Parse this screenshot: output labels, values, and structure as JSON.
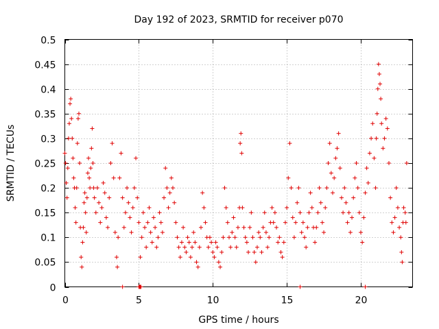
{
  "chart_data": {
    "type": "scatter",
    "title": "Day 192 of 2023, SRMTID for receiver p070",
    "xlabel": "GPS time / hours",
    "ylabel": "SRMTID / TECUs",
    "xlim": [
      0,
      23.5
    ],
    "ylim": [
      0,
      0.5
    ],
    "xticks": [
      0,
      5,
      10,
      15,
      20
    ],
    "xtick_labels": [
      "0",
      "5",
      "10",
      "15",
      "20"
    ],
    "yticks": [
      0,
      0.05,
      0.1,
      0.15,
      0.2,
      0.25,
      0.3,
      0.35,
      0.4,
      0.45,
      0.5
    ],
    "ytick_labels": [
      "0",
      "0.05",
      "0.1",
      "0.15",
      "0.2",
      "0.25",
      "0.3",
      "0.35",
      "0.4",
      "0.45",
      "0.5"
    ],
    "grid": true,
    "marker": "+",
    "color": "#e00000",
    "series": [
      {
        "name": "SRMTID",
        "points": [
          [
            0.0,
            0.27
          ],
          [
            0.05,
            0.25
          ],
          [
            0.1,
            0.21
          ],
          [
            0.15,
            0.18
          ],
          [
            0.2,
            0.24
          ],
          [
            0.25,
            0.3
          ],
          [
            0.3,
            0.33
          ],
          [
            0.35,
            0.37
          ],
          [
            0.4,
            0.38
          ],
          [
            0.45,
            0.34
          ],
          [
            0.5,
            0.3
          ],
          [
            0.55,
            0.26
          ],
          [
            0.6,
            0.22
          ],
          [
            0.65,
            0.2
          ],
          [
            0.7,
            0.16
          ],
          [
            0.75,
            0.13
          ],
          [
            0.8,
            0.2
          ],
          [
            0.85,
            0.29
          ],
          [
            0.9,
            0.34
          ],
          [
            0.95,
            0.35
          ],
          [
            1.0,
            0.25
          ],
          [
            1.05,
            0.12
          ],
          [
            1.1,
            0.06
          ],
          [
            1.15,
            0.04
          ],
          [
            1.2,
            0.09
          ],
          [
            1.25,
            0.12
          ],
          [
            1.3,
            0.17
          ],
          [
            1.35,
            0.19
          ],
          [
            1.4,
            0.15
          ],
          [
            1.45,
            0.11
          ],
          [
            1.5,
            0.18
          ],
          [
            1.55,
            0.23
          ],
          [
            1.6,
            0.26
          ],
          [
            1.65,
            0.22
          ],
          [
            1.7,
            0.2
          ],
          [
            1.75,
            0.24
          ],
          [
            1.8,
            0.28
          ],
          [
            1.85,
            0.32
          ],
          [
            1.9,
            0.25
          ],
          [
            1.95,
            0.2
          ],
          [
            2.0,
            0.18
          ],
          [
            2.1,
            0.15
          ],
          [
            2.2,
            0.2
          ],
          [
            2.3,
            0.17
          ],
          [
            2.4,
            0.13
          ],
          [
            2.5,
            0.16
          ],
          [
            2.6,
            0.21
          ],
          [
            2.7,
            0.19
          ],
          [
            2.8,
            0.14
          ],
          [
            2.9,
            0.12
          ],
          [
            3.0,
            0.18
          ],
          [
            3.1,
            0.25
          ],
          [
            3.2,
            0.29
          ],
          [
            3.3,
            0.22
          ],
          [
            3.4,
            0.11
          ],
          [
            3.5,
            0.06
          ],
          [
            3.55,
            0.04
          ],
          [
            3.6,
            0.1
          ],
          [
            3.7,
            0.22
          ],
          [
            3.8,
            0.27
          ],
          [
            3.9,
            0.18
          ],
          [
            4.0,
            0.12
          ],
          [
            4.1,
            0.15
          ],
          [
            4.2,
            0.2
          ],
          [
            4.3,
            0.17
          ],
          [
            4.4,
            0.14
          ],
          [
            4.5,
            0.11
          ],
          [
            4.6,
            0.16
          ],
          [
            4.7,
            0.2
          ],
          [
            4.8,
            0.26
          ],
          [
            4.9,
            0.18
          ],
          [
            5.0,
            0.13
          ],
          [
            5.1,
            0.06
          ],
          [
            5.2,
            0.1
          ],
          [
            5.3,
            0.15
          ],
          [
            5.4,
            0.12
          ],
          [
            5.5,
            0.08
          ],
          [
            5.6,
            0.13
          ],
          [
            5.7,
            0.16
          ],
          [
            5.8,
            0.11
          ],
          [
            5.9,
            0.09
          ],
          [
            6.0,
            0.14
          ],
          [
            6.1,
            0.12
          ],
          [
            6.2,
            0.08
          ],
          [
            6.3,
            0.1
          ],
          [
            6.4,
            0.15
          ],
          [
            6.5,
            0.13
          ],
          [
            6.6,
            0.11
          ],
          [
            6.7,
            0.18
          ],
          [
            6.8,
            0.24
          ],
          [
            6.9,
            0.2
          ],
          [
            7.0,
            0.16
          ],
          [
            7.1,
            0.19
          ],
          [
            7.2,
            0.22
          ],
          [
            7.3,
            0.2
          ],
          [
            7.4,
            0.17
          ],
          [
            7.5,
            0.13
          ],
          [
            7.6,
            0.1
          ],
          [
            7.7,
            0.08
          ],
          [
            7.8,
            0.06
          ],
          [
            7.9,
            0.09
          ],
          [
            8.0,
            0.12
          ],
          [
            8.1,
            0.08
          ],
          [
            8.2,
            0.07
          ],
          [
            8.3,
            0.1
          ],
          [
            8.4,
            0.09
          ],
          [
            8.5,
            0.06
          ],
          [
            8.6,
            0.08
          ],
          [
            8.7,
            0.11
          ],
          [
            8.8,
            0.09
          ],
          [
            8.9,
            0.05
          ],
          [
            9.0,
            0.04
          ],
          [
            9.1,
            0.08
          ],
          [
            9.2,
            0.12
          ],
          [
            9.3,
            0.19
          ],
          [
            9.4,
            0.16
          ],
          [
            9.5,
            0.13
          ],
          [
            9.6,
            0.1
          ],
          [
            9.7,
            0.08
          ],
          [
            9.8,
            0.1
          ],
          [
            9.9,
            0.09
          ],
          [
            10.0,
            0.07
          ],
          [
            10.1,
            0.06
          ],
          [
            10.2,
            0.09
          ],
          [
            10.3,
            0.08
          ],
          [
            10.4,
            0.05
          ],
          [
            10.5,
            0.04
          ],
          [
            10.6,
            0.07
          ],
          [
            10.7,
            0.1
          ],
          [
            10.8,
            0.2
          ],
          [
            10.9,
            0.16
          ],
          [
            11.0,
            0.13
          ],
          [
            11.1,
            0.1
          ],
          [
            11.2,
            0.08
          ],
          [
            11.3,
            0.11
          ],
          [
            11.4,
            0.14
          ],
          [
            11.5,
            0.1
          ],
          [
            11.6,
            0.08
          ],
          [
            11.7,
            0.12
          ],
          [
            11.8,
            0.16
          ],
          [
            11.85,
            0.29
          ],
          [
            11.9,
            0.31
          ],
          [
            11.95,
            0.27
          ],
          [
            12.0,
            0.16
          ],
          [
            12.1,
            0.12
          ],
          [
            12.2,
            0.1
          ],
          [
            12.3,
            0.09
          ],
          [
            12.4,
            0.07
          ],
          [
            12.5,
            0.12
          ],
          [
            12.6,
            0.15
          ],
          [
            12.7,
            0.1
          ],
          [
            12.8,
            0.07
          ],
          [
            12.9,
            0.05
          ],
          [
            13.0,
            0.08
          ],
          [
            13.1,
            0.11
          ],
          [
            13.2,
            0.1
          ],
          [
            13.3,
            0.07
          ],
          [
            13.4,
            0.12
          ],
          [
            13.5,
            0.15
          ],
          [
            13.6,
            0.11
          ],
          [
            13.7,
            0.08
          ],
          [
            13.8,
            0.1
          ],
          [
            13.9,
            0.13
          ],
          [
            14.0,
            0.16
          ],
          [
            14.1,
            0.13
          ],
          [
            14.2,
            0.15
          ],
          [
            14.3,
            0.12
          ],
          [
            14.4,
            0.09
          ],
          [
            14.5,
            0.1
          ],
          [
            14.6,
            0.07
          ],
          [
            14.7,
            0.06
          ],
          [
            14.8,
            0.09
          ],
          [
            14.9,
            0.13
          ],
          [
            15.0,
            0.16
          ],
          [
            15.1,
            0.22
          ],
          [
            15.2,
            0.29
          ],
          [
            15.3,
            0.2
          ],
          [
            15.4,
            0.14
          ],
          [
            15.5,
            0.1
          ],
          [
            15.6,
            0.13
          ],
          [
            15.7,
            0.17
          ],
          [
            15.8,
            0.2
          ],
          [
            15.9,
            0.15
          ],
          [
            16.0,
            0.11
          ],
          [
            16.1,
            0.13
          ],
          [
            16.2,
            0.1
          ],
          [
            16.3,
            0.08
          ],
          [
            16.4,
            0.12
          ],
          [
            16.5,
            0.15
          ],
          [
            16.6,
            0.19
          ],
          [
            16.7,
            0.16
          ],
          [
            16.8,
            0.12
          ],
          [
            16.9,
            0.09
          ],
          [
            17.0,
            0.12
          ],
          [
            17.1,
            0.15
          ],
          [
            17.2,
            0.2
          ],
          [
            17.3,
            0.17
          ],
          [
            17.4,
            0.13
          ],
          [
            17.5,
            0.11
          ],
          [
            17.6,
            0.16
          ],
          [
            17.7,
            0.2
          ],
          [
            17.8,
            0.25
          ],
          [
            17.9,
            0.29
          ],
          [
            18.0,
            0.23
          ],
          [
            18.1,
            0.19
          ],
          [
            18.2,
            0.22
          ],
          [
            18.3,
            0.26
          ],
          [
            18.4,
            0.28
          ],
          [
            18.5,
            0.31
          ],
          [
            18.6,
            0.24
          ],
          [
            18.7,
            0.18
          ],
          [
            18.8,
            0.15
          ],
          [
            18.9,
            0.2
          ],
          [
            19.0,
            0.17
          ],
          [
            19.1,
            0.13
          ],
          [
            19.2,
            0.15
          ],
          [
            19.3,
            0.11
          ],
          [
            19.4,
            0.14
          ],
          [
            19.5,
            0.18
          ],
          [
            19.6,
            0.22
          ],
          [
            19.7,
            0.25
          ],
          [
            19.8,
            0.2
          ],
          [
            19.9,
            0.15
          ],
          [
            20.0,
            0.11
          ],
          [
            20.1,
            0.09
          ],
          [
            20.2,
            0.14
          ],
          [
            20.3,
            0.19
          ],
          [
            20.4,
            0.24
          ],
          [
            20.5,
            0.21
          ],
          [
            20.6,
            0.27
          ],
          [
            20.7,
            0.3
          ],
          [
            20.8,
            0.33
          ],
          [
            20.9,
            0.26
          ],
          [
            21.0,
            0.2
          ],
          [
            21.05,
            0.3
          ],
          [
            21.1,
            0.35
          ],
          [
            21.15,
            0.4
          ],
          [
            21.2,
            0.45
          ],
          [
            21.25,
            0.43
          ],
          [
            21.3,
            0.41
          ],
          [
            21.35,
            0.38
          ],
          [
            21.4,
            0.33
          ],
          [
            21.5,
            0.28
          ],
          [
            21.6,
            0.3
          ],
          [
            21.7,
            0.34
          ],
          [
            21.8,
            0.32
          ],
          [
            21.9,
            0.25
          ],
          [
            22.0,
            0.18
          ],
          [
            22.1,
            0.13
          ],
          [
            22.2,
            0.11
          ],
          [
            22.3,
            0.14
          ],
          [
            22.4,
            0.2
          ],
          [
            22.5,
            0.16
          ],
          [
            22.6,
            0.12
          ],
          [
            22.7,
            0.1
          ],
          [
            22.75,
            0.07
          ],
          [
            22.8,
            0.05
          ],
          [
            22.85,
            0.13
          ],
          [
            22.9,
            0.16
          ],
          [
            23.0,
            0.15
          ],
          [
            23.05,
            0.13
          ],
          [
            23.1,
            0.25
          ],
          [
            3.9,
            0.0
          ],
          [
            5.0,
            0.0
          ],
          [
            5.05,
            0.0
          ],
          [
            5.1,
            0.0
          ],
          [
            5.15,
            0.0
          ],
          [
            15.9,
            0.0
          ],
          [
            20.3,
            0.0
          ]
        ]
      }
    ]
  }
}
